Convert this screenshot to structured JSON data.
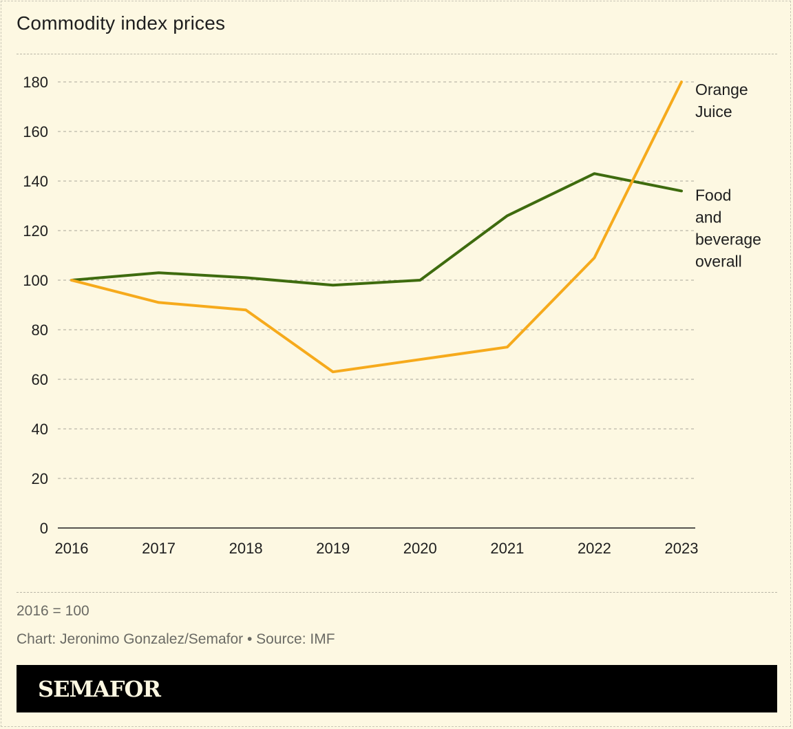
{
  "header": {
    "title": "Commodity index prices"
  },
  "footer": {
    "note": "2016 = 100",
    "credit": "Chart: Jeronimo Gonzalez/Semafor • Source: IMF",
    "brand": "SEMAFOR"
  },
  "colors": {
    "background": "#fdf8e2",
    "orange_juice": "#f6aa1c",
    "food_beverage": "#3e6b0e",
    "brand_bar": "#000000"
  },
  "chart_data": {
    "type": "line",
    "title": "Commodity index prices",
    "xlabel": "",
    "ylabel": "",
    "x": [
      "2016",
      "2017",
      "2018",
      "2019",
      "2020",
      "2021",
      "2022",
      "2023"
    ],
    "ylim": [
      0,
      180
    ],
    "yticks": [
      0,
      20,
      40,
      60,
      80,
      100,
      120,
      140,
      160,
      180
    ],
    "grid": "horizontal dashed",
    "legend": "direct labels at right end of lines",
    "series": [
      {
        "name": "Orange Juice",
        "label_lines": [
          "Orange",
          "Juice"
        ],
        "color": "#f6aa1c",
        "values": [
          100,
          91,
          88,
          63,
          68,
          73,
          109,
          180
        ]
      },
      {
        "name": "Food and beverage overall",
        "label_lines": [
          "Food",
          "and",
          "beverage",
          "overall"
        ],
        "color": "#3e6b0e",
        "values": [
          100,
          103,
          101,
          98,
          100,
          126,
          143,
          136
        ]
      }
    ]
  }
}
